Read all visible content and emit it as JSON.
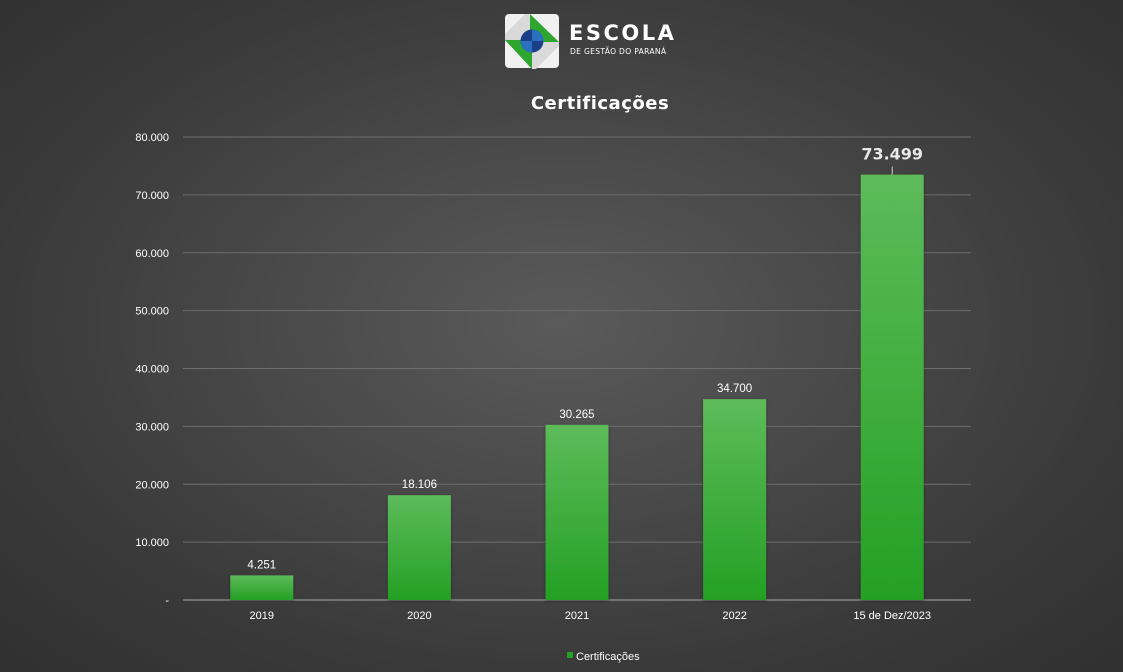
{
  "logo": {
    "name": "ESCOLA",
    "subtitle": "DE GESTÃO DO PARANÁ"
  },
  "colors": {
    "bar_top": "#5dbb5a",
    "bar_bottom": "#24a024",
    "gridline": "#6e6e6e",
    "axis": "#a8a8a8",
    "text": "#ffffff"
  },
  "chart_data": {
    "type": "bar",
    "title": "Certificações",
    "xlabel": "",
    "ylabel": "",
    "categories": [
      "2019",
      "2020",
      "2021",
      "2022",
      "15 de Dez/2023"
    ],
    "series": [
      {
        "name": "Certificações",
        "values": [
          4251,
          18106,
          30265,
          34700,
          73499
        ],
        "data_labels": [
          "4.251",
          "18.106",
          "30.265",
          "34.700",
          "73.499"
        ]
      }
    ],
    "highlighted_label_index": 4,
    "ylim": [
      0,
      80000
    ],
    "y_ticks": [
      0,
      10000,
      20000,
      30000,
      40000,
      50000,
      60000,
      70000,
      80000
    ],
    "y_tick_labels": [
      "-",
      "10.000",
      "20.000",
      "30.000",
      "40.000",
      "50.000",
      "60.000",
      "70.000",
      "80.000"
    ],
    "grid": true,
    "legend_position": "bottom"
  }
}
